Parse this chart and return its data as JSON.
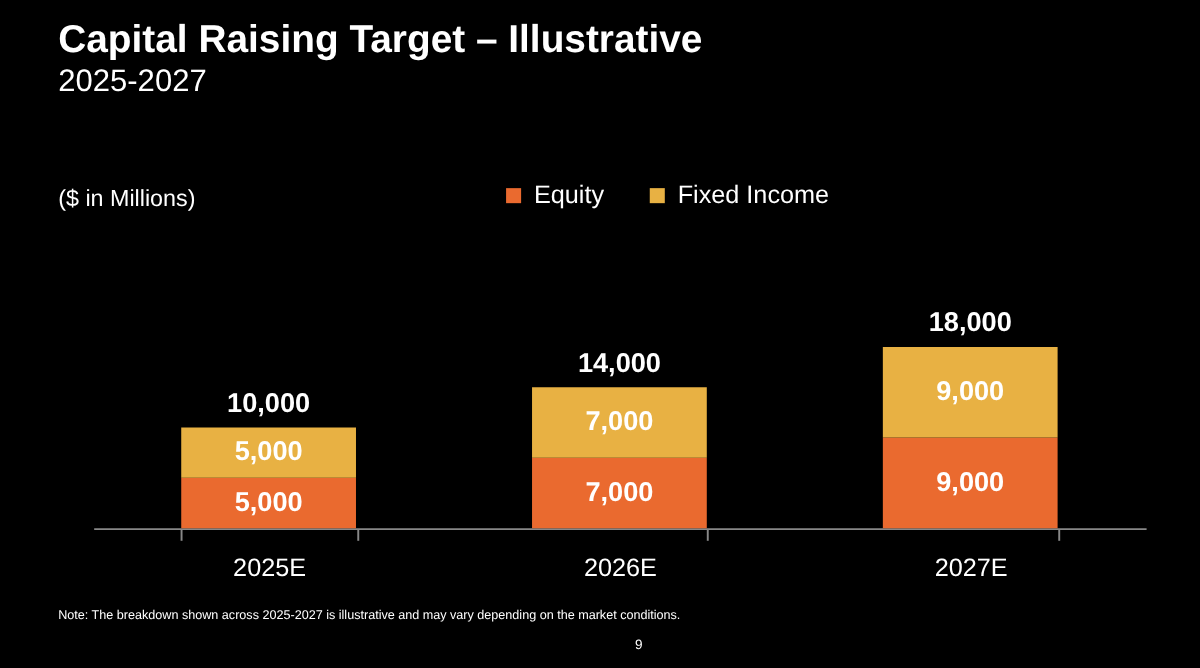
{
  "chart_data": {
    "type": "bar",
    "title": "Capital Raising Target – Illustrative",
    "subtitle": "2025-2027",
    "categories": [
      "2025E",
      "2026E",
      "2027E"
    ],
    "stacked": true,
    "legend": "top",
    "grid": false,
    "series": [
      {
        "name": "Equity",
        "color": "#ea6a2f",
        "values": [
          5000,
          7000,
          9000
        ],
        "value_labels": [
          "5,000",
          "7,000",
          "9,000"
        ]
      },
      {
        "name": "Fixed Income",
        "color": "#e8b143",
        "values": [
          5000,
          7000,
          9000
        ],
        "value_labels": [
          "5,000",
          "7,000",
          "9,000"
        ]
      }
    ],
    "totals": [
      "10,000",
      "14,000",
      "18,000"
    ],
    "annotations": [
      "($ in Millions)",
      "Note: The breakdown shown across 2025-2027 is illustrative and may vary depending on the market conditions.",
      "9"
    ]
  }
}
